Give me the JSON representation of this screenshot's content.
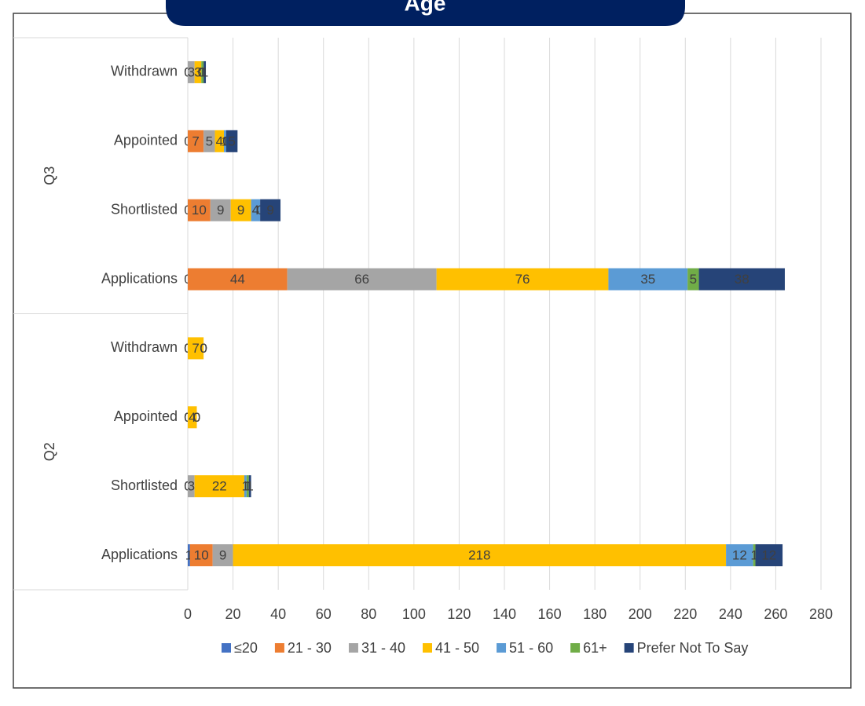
{
  "chart_data": {
    "type": "stacked-bar-horizontal",
    "title": "Age",
    "groups": [
      {
        "name": "Q3",
        "categories": [
          "Withdrawn",
          "Appointed",
          "Shortlisted",
          "Applications"
        ]
      },
      {
        "name": "Q2",
        "categories": [
          "Withdrawn",
          "Appointed",
          "Shortlisted",
          "Applications"
        ]
      }
    ],
    "series": [
      {
        "name": "≤20",
        "color": "#4472c4",
        "values": [
          0,
          0,
          0,
          0,
          0,
          0,
          0,
          1
        ]
      },
      {
        "name": "21 - 30",
        "color": "#ed7d31",
        "values": [
          0,
          7,
          10,
          44,
          0,
          0,
          0,
          10
        ]
      },
      {
        "name": "31 - 40",
        "color": "#a5a5a5",
        "values": [
          3,
          5,
          9,
          66,
          0,
          0,
          3,
          9
        ]
      },
      {
        "name": "41 - 50",
        "color": "#ffc000",
        "values": [
          3,
          4,
          9,
          76,
          7,
          4,
          22,
          218
        ]
      },
      {
        "name": "51 - 60",
        "color": "#5b9bd5",
        "values": [
          0,
          1,
          4,
          35,
          0,
          0,
          1,
          12
        ]
      },
      {
        "name": "61+",
        "color": "#70ad47",
        "values": [
          1,
          0,
          0,
          5,
          0,
          0,
          1,
          1
        ]
      },
      {
        "name": "Prefer Not To Say",
        "color": "#264478",
        "values": [
          1,
          5,
          9,
          38,
          0,
          0,
          1,
          12
        ]
      }
    ],
    "xlim": [
      0,
      280
    ],
    "xticks": [
      0,
      20,
      40,
      60,
      80,
      100,
      120,
      140,
      160,
      180,
      200,
      220,
      240,
      260,
      280
    ],
    "grid": true,
    "legend": "bottom"
  }
}
